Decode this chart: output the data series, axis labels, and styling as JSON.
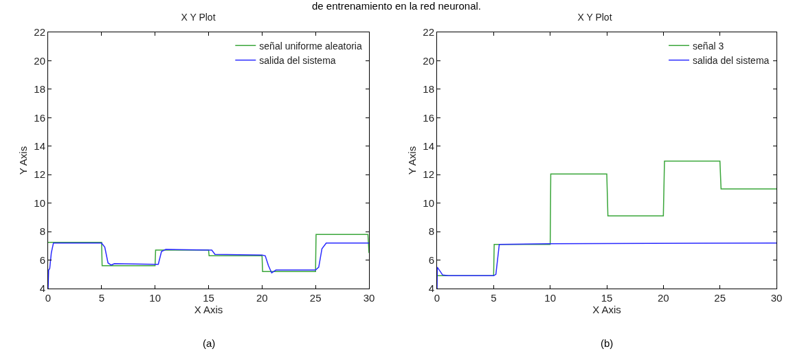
{
  "chart_data": [
    {
      "type": "line",
      "title": "X Y Plot",
      "xlabel": "X Axis",
      "ylabel": "Y Axis",
      "xlim": [
        0,
        30
      ],
      "xticks": [
        0,
        5,
        10,
        15,
        20,
        25,
        30
      ],
      "ylim": [
        4,
        22
      ],
      "yticks": [
        4,
        6,
        8,
        10,
        12,
        14,
        16,
        18,
        20,
        22
      ],
      "grid": false,
      "legend": "top right",
      "line_style": "solid",
      "marker": "none",
      "annotations": [
        "de entrenamiento en la red neuronal.",
        "(a)"
      ],
      "series": [
        {
          "name": "señal uniforme aleatoria",
          "color": "#3aa63a",
          "x": [
            0,
            5,
            5.05,
            10,
            10.05,
            15,
            15.05,
            20,
            20.05,
            25,
            25.05,
            29.9,
            30
          ],
          "values": [
            7.25,
            7.25,
            5.6,
            5.6,
            6.7,
            6.7,
            6.3,
            6.3,
            5.2,
            5.2,
            7.8,
            7.8,
            6.5
          ]
        },
        {
          "name": "salida del sistema",
          "color": "#2a2aff",
          "x": [
            0,
            0.05,
            0.15,
            0.3,
            0.5,
            5,
            5.3,
            5.6,
            5.9,
            6.2,
            10,
            10.3,
            10.6,
            11,
            15,
            15.3,
            15.6,
            20,
            20.3,
            20.6,
            20.9,
            21.3,
            25,
            25.3,
            25.6,
            26,
            30
          ],
          "values": [
            4,
            5.3,
            5.4,
            6.5,
            7.2,
            7.2,
            6.9,
            5.8,
            5.65,
            5.75,
            5.7,
            5.7,
            6.6,
            6.75,
            6.7,
            6.7,
            6.4,
            6.35,
            6.3,
            5.6,
            5.1,
            5.3,
            5.3,
            5.5,
            6.8,
            7.2,
            7.2
          ]
        }
      ]
    },
    {
      "type": "line",
      "title": "X Y Plot",
      "xlabel": "X Axis",
      "ylabel": "Y Axis",
      "xlim": [
        0,
        30
      ],
      "xticks": [
        0,
        5,
        10,
        15,
        20,
        25,
        30
      ],
      "ylim": [
        4,
        22
      ],
      "yticks": [
        4,
        6,
        8,
        10,
        12,
        14,
        16,
        18,
        20,
        22
      ],
      "grid": false,
      "legend": "top right",
      "line_style": "solid",
      "marker": "none",
      "annotations": [
        "(b)"
      ],
      "series": [
        {
          "name": "señal 3",
          "color": "#3aa63a",
          "x": [
            0,
            5,
            5.05,
            10,
            10.05,
            15,
            15.1,
            20,
            20.1,
            25,
            25.1,
            30
          ],
          "values": [
            4.9,
            4.9,
            7.1,
            7.1,
            12.05,
            12.05,
            9.1,
            9.1,
            12.95,
            12.95,
            11,
            11
          ]
        },
        {
          "name": "salida del sistema",
          "color": "#2a2aff",
          "x": [
            0,
            0.02,
            0.2,
            0.5,
            1,
            5,
            5.2,
            5.5,
            10,
            30
          ],
          "values": [
            4,
            5.5,
            5.3,
            4.95,
            4.9,
            4.9,
            5,
            7.1,
            7.15,
            7.2
          ]
        }
      ]
    }
  ]
}
